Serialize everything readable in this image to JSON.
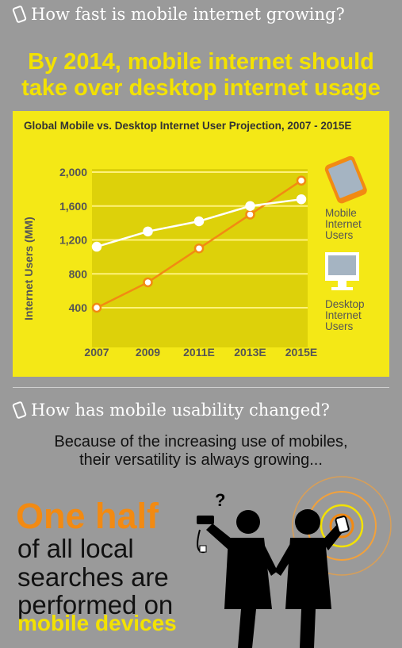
{
  "section1": {
    "question": "How fast is mobile internet growing?"
  },
  "headline": {
    "line1": "By 2014, mobile internet should",
    "line2": "take over desktop internet usage"
  },
  "chart_data": {
    "type": "line",
    "title": "Global Mobile vs. Desktop Internet User Projection, 2007 - 2015E",
    "ylabel": "Internet Users (MM)",
    "xlabel": "",
    "categories": [
      "2007",
      "2009",
      "2011E",
      "2013E",
      "2015E"
    ],
    "yticks": [
      "2,000",
      "1,600",
      "1,200",
      "800",
      "400"
    ],
    "ylim": [
      400,
      2000
    ],
    "grid": true,
    "series": [
      {
        "name": "Mobile Internet Users",
        "label_lines": [
          "Mobile",
          "Internet",
          "Users"
        ],
        "color": "#f28a12",
        "values": [
          400,
          700,
          1100,
          1500,
          1900
        ]
      },
      {
        "name": "Desktop Internet Users",
        "label_lines": [
          "Desktop",
          "Internet",
          "Users"
        ],
        "color": "#ffffff",
        "values": [
          1120,
          1300,
          1420,
          1600,
          1680
        ]
      }
    ],
    "colors": {
      "panel": "#f4e816",
      "plot": "#ddd10a",
      "grid": "#fff27a"
    }
  },
  "section2": {
    "question": "How has mobile usability changed?"
  },
  "usability": {
    "line1": "Because of the increasing use of mobiles,",
    "line2": "their versatility is always growing..."
  },
  "stat": {
    "big": "One half",
    "line1": "of all local",
    "line2": "searches are",
    "line3": "performed on",
    "line4": "mobile devices"
  },
  "illustration": {
    "question_mark": "?"
  }
}
